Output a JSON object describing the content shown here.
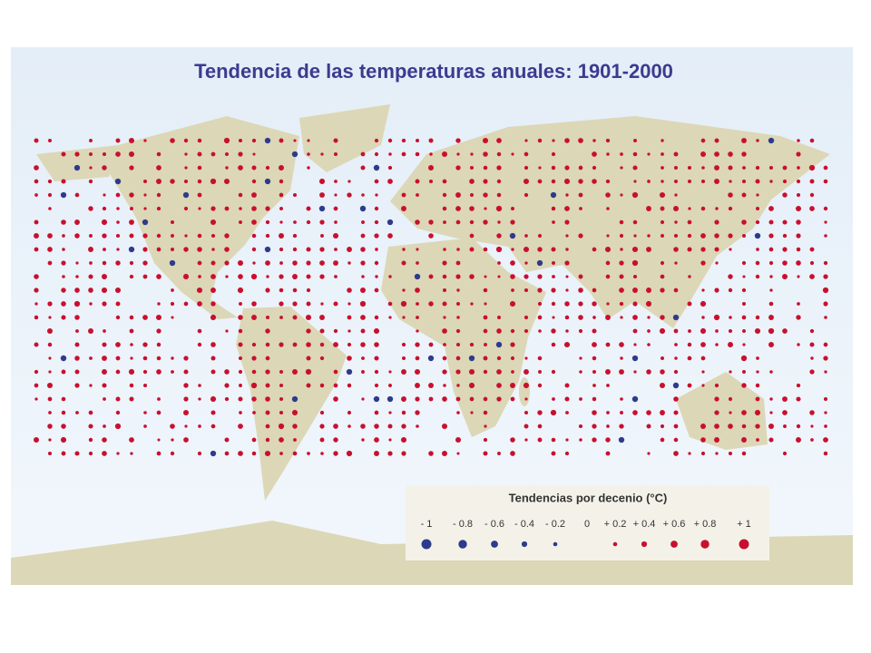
{
  "map": {
    "title": "Tendencia de las temperaturas anuales: 1901-2000",
    "legend": {
      "title": "Tendencias por decenio (°C)",
      "items": [
        {
          "label": "- 1",
          "value": -1,
          "color": "#2e3a8c"
        },
        {
          "label": "- 0.8",
          "value": -0.8,
          "color": "#2e3a8c"
        },
        {
          "label": "- 0.6",
          "value": -0.6,
          "color": "#2e3a8c"
        },
        {
          "label": "- 0.4",
          "value": -0.4,
          "color": "#2e3a8c"
        },
        {
          "label": "- 0.2",
          "value": -0.2,
          "color": "#2e3a8c"
        },
        {
          "label": "0",
          "value": 0,
          "color": "#c8102e"
        },
        {
          "label": "+ 0.2",
          "value": 0.2,
          "color": "#c8102e"
        },
        {
          "label": "+ 0.4",
          "value": 0.4,
          "color": "#c8102e"
        },
        {
          "label": "+ 0.6",
          "value": 0.6,
          "color": "#c8102e"
        },
        {
          "label": "+ 0.8",
          "value": 0.8,
          "color": "#c8102e"
        },
        {
          "label": "+ 1",
          "value": 1,
          "color": "#c8102e"
        }
      ]
    }
  }
}
